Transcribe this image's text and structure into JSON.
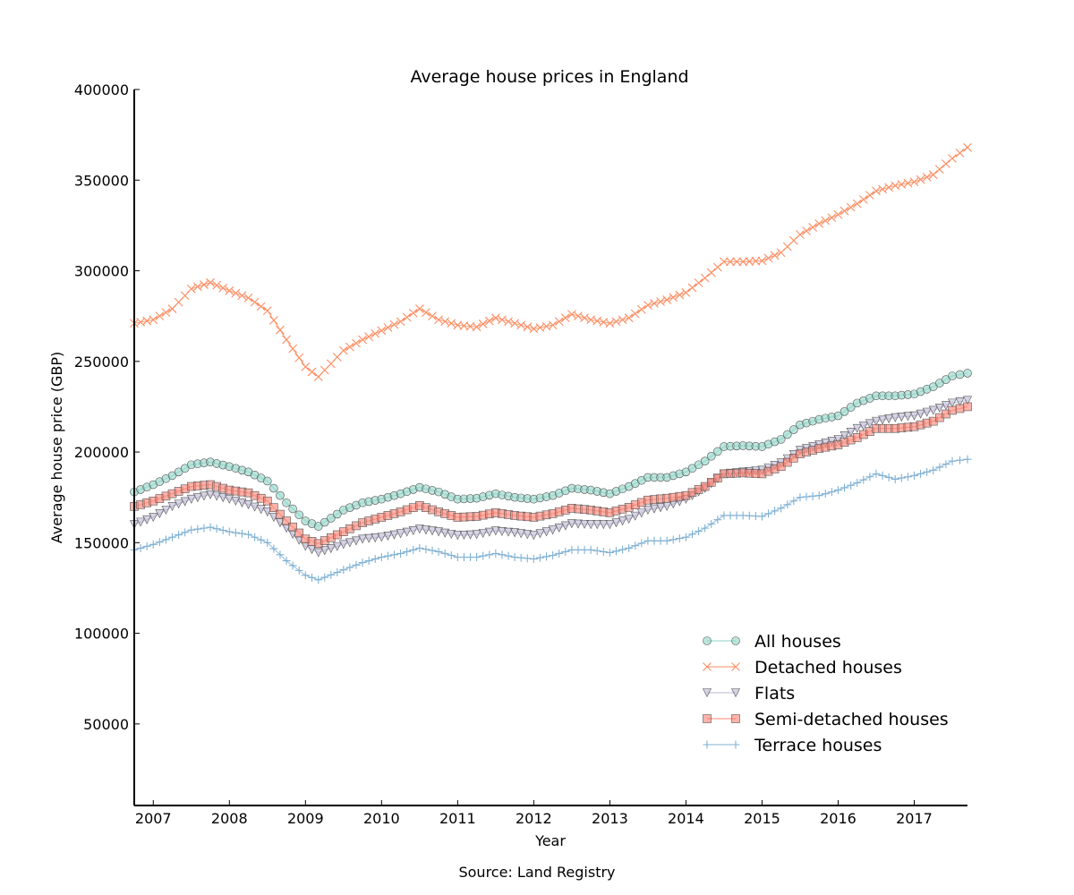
{
  "chart_data": {
    "type": "line",
    "title": "Average house prices in England",
    "xlabel": "Year",
    "ylabel": "Average house price (GBP)",
    "source": "Source: Land Registry",
    "xlim": [
      2006.75,
      2017.7
    ],
    "ylim": [
      5000,
      400000
    ],
    "x_ticks": [
      2007,
      2008,
      2009,
      2010,
      2011,
      2012,
      2013,
      2014,
      2015,
      2016,
      2017
    ],
    "x_tick_labels": [
      "2007",
      "2008",
      "2009",
      "2010",
      "2011",
      "2012",
      "2013",
      "2014",
      "2015",
      "2016",
      "2017"
    ],
    "y_ticks": [
      50000,
      100000,
      150000,
      200000,
      250000,
      300000,
      350000,
      400000
    ],
    "y_tick_labels": [
      "50000",
      "100000",
      "150000",
      "200000",
      "250000",
      "300000",
      "350000",
      "400000"
    ],
    "grid": false,
    "legend_position": "lower-right",
    "series": [
      {
        "name": "All houses",
        "marker": "circle",
        "color": "#8dd3c7",
        "points": [
          [
            2006.75,
            178000
          ],
          [
            2007.0,
            182000
          ],
          [
            2007.25,
            187000
          ],
          [
            2007.5,
            193000
          ],
          [
            2007.75,
            194500
          ],
          [
            2008.0,
            192000
          ],
          [
            2008.25,
            189000
          ],
          [
            2008.5,
            184000
          ],
          [
            2008.75,
            172000
          ],
          [
            2009.0,
            162000
          ],
          [
            2009.17,
            159000
          ],
          [
            2009.5,
            168000
          ],
          [
            2009.75,
            172000
          ],
          [
            2010.0,
            174000
          ],
          [
            2010.25,
            177000
          ],
          [
            2010.5,
            180500
          ],
          [
            2010.75,
            178000
          ],
          [
            2011.0,
            174000
          ],
          [
            2011.25,
            174500
          ],
          [
            2011.5,
            177000
          ],
          [
            2011.75,
            175000
          ],
          [
            2012.0,
            174000
          ],
          [
            2012.25,
            176000
          ],
          [
            2012.5,
            180000
          ],
          [
            2012.75,
            179000
          ],
          [
            2013.0,
            177000
          ],
          [
            2013.25,
            181000
          ],
          [
            2013.5,
            186000
          ],
          [
            2013.75,
            186000
          ],
          [
            2014.0,
            189000
          ],
          [
            2014.25,
            195000
          ],
          [
            2014.5,
            203000
          ],
          [
            2014.75,
            203500
          ],
          [
            2015.0,
            203000
          ],
          [
            2015.25,
            207000
          ],
          [
            2015.5,
            215000
          ],
          [
            2015.75,
            218000
          ],
          [
            2016.0,
            220000
          ],
          [
            2016.25,
            227000
          ],
          [
            2016.5,
            231000
          ],
          [
            2016.75,
            231000
          ],
          [
            2017.0,
            232000
          ],
          [
            2017.25,
            236000
          ],
          [
            2017.5,
            242000
          ],
          [
            2017.7,
            243500
          ]
        ]
      },
      {
        "name": "Detached houses",
        "marker": "x",
        "color": "#fc8d62",
        "points": [
          [
            2006.75,
            271000
          ],
          [
            2007.0,
            273000
          ],
          [
            2007.25,
            279000
          ],
          [
            2007.5,
            290000
          ],
          [
            2007.75,
            293500
          ],
          [
            2008.0,
            289000
          ],
          [
            2008.25,
            285000
          ],
          [
            2008.5,
            278000
          ],
          [
            2008.75,
            262000
          ],
          [
            2009.0,
            247000
          ],
          [
            2009.17,
            241500
          ],
          [
            2009.5,
            256000
          ],
          [
            2009.75,
            262000
          ],
          [
            2010.0,
            267000
          ],
          [
            2010.25,
            272000
          ],
          [
            2010.5,
            279000
          ],
          [
            2010.75,
            273000
          ],
          [
            2011.0,
            270000
          ],
          [
            2011.25,
            269000
          ],
          [
            2011.5,
            274000
          ],
          [
            2011.75,
            271000
          ],
          [
            2012.0,
            268000
          ],
          [
            2012.25,
            270000
          ],
          [
            2012.5,
            276000
          ],
          [
            2012.75,
            273000
          ],
          [
            2013.0,
            271000
          ],
          [
            2013.25,
            274000
          ],
          [
            2013.5,
            281000
          ],
          [
            2013.75,
            284000
          ],
          [
            2014.0,
            288000
          ],
          [
            2014.25,
            296000
          ],
          [
            2014.5,
            305000
          ],
          [
            2014.75,
            305000
          ],
          [
            2015.0,
            305500
          ],
          [
            2015.25,
            310000
          ],
          [
            2015.5,
            320000
          ],
          [
            2015.75,
            326000
          ],
          [
            2016.0,
            331000
          ],
          [
            2016.25,
            337000
          ],
          [
            2016.5,
            344000
          ],
          [
            2016.75,
            347000
          ],
          [
            2017.0,
            349000
          ],
          [
            2017.25,
            353000
          ],
          [
            2017.5,
            362000
          ],
          [
            2017.7,
            368000
          ]
        ]
      },
      {
        "name": "Flats",
        "marker": "triangle-down",
        "color": "#bcb8d6",
        "points": [
          [
            2006.75,
            160000
          ],
          [
            2007.0,
            164000
          ],
          [
            2007.25,
            170000
          ],
          [
            2007.5,
            174000
          ],
          [
            2007.75,
            176500
          ],
          [
            2008.0,
            174000
          ],
          [
            2008.25,
            171000
          ],
          [
            2008.5,
            167000
          ],
          [
            2008.75,
            158000
          ],
          [
            2009.0,
            148000
          ],
          [
            2009.17,
            144500
          ],
          [
            2009.5,
            149000
          ],
          [
            2009.75,
            152000
          ],
          [
            2010.0,
            153000
          ],
          [
            2010.25,
            155000
          ],
          [
            2010.5,
            157500
          ],
          [
            2010.75,
            156000
          ],
          [
            2011.0,
            154000
          ],
          [
            2011.25,
            154500
          ],
          [
            2011.5,
            156500
          ],
          [
            2011.75,
            155500
          ],
          [
            2012.0,
            154000
          ],
          [
            2012.25,
            157000
          ],
          [
            2012.5,
            160500
          ],
          [
            2012.75,
            160000
          ],
          [
            2013.0,
            160000
          ],
          [
            2013.25,
            163000
          ],
          [
            2013.5,
            168000
          ],
          [
            2013.75,
            170000
          ],
          [
            2014.0,
            174000
          ],
          [
            2014.25,
            180000
          ],
          [
            2014.5,
            188000
          ],
          [
            2014.75,
            189000
          ],
          [
            2015.0,
            190000
          ],
          [
            2015.25,
            194000
          ],
          [
            2015.5,
            201000
          ],
          [
            2015.75,
            204000
          ],
          [
            2016.0,
            207000
          ],
          [
            2016.25,
            213000
          ],
          [
            2016.5,
            217000
          ],
          [
            2016.75,
            219000
          ],
          [
            2017.0,
            220000
          ],
          [
            2017.25,
            223000
          ],
          [
            2017.5,
            227000
          ],
          [
            2017.7,
            228500
          ]
        ]
      },
      {
        "name": "Semi-detached houses",
        "marker": "square",
        "color": "#fb8072",
        "points": [
          [
            2006.75,
            170000
          ],
          [
            2007.0,
            173000
          ],
          [
            2007.25,
            177000
          ],
          [
            2007.5,
            181000
          ],
          [
            2007.75,
            182000
          ],
          [
            2008.0,
            179000
          ],
          [
            2008.25,
            177500
          ],
          [
            2008.5,
            173000
          ],
          [
            2008.75,
            162000
          ],
          [
            2009.0,
            152000
          ],
          [
            2009.17,
            149500
          ],
          [
            2009.5,
            156000
          ],
          [
            2009.75,
            161000
          ],
          [
            2010.0,
            164000
          ],
          [
            2010.25,
            167000
          ],
          [
            2010.5,
            170500
          ],
          [
            2010.75,
            167000
          ],
          [
            2011.0,
            164000
          ],
          [
            2011.25,
            164500
          ],
          [
            2011.5,
            166500
          ],
          [
            2011.75,
            165000
          ],
          [
            2012.0,
            164000
          ],
          [
            2012.25,
            166000
          ],
          [
            2012.5,
            169000
          ],
          [
            2012.75,
            168000
          ],
          [
            2013.0,
            166500
          ],
          [
            2013.25,
            169500
          ],
          [
            2013.5,
            173500
          ],
          [
            2013.75,
            174500
          ],
          [
            2014.0,
            176000
          ],
          [
            2014.25,
            181000
          ],
          [
            2014.5,
            188000
          ],
          [
            2014.75,
            188500
          ],
          [
            2015.0,
            188000
          ],
          [
            2015.25,
            192000
          ],
          [
            2015.5,
            199000
          ],
          [
            2015.75,
            202000
          ],
          [
            2016.0,
            204000
          ],
          [
            2016.25,
            208000
          ],
          [
            2016.5,
            213000
          ],
          [
            2016.75,
            213000
          ],
          [
            2017.0,
            214000
          ],
          [
            2017.25,
            217000
          ],
          [
            2017.5,
            223000
          ],
          [
            2017.7,
            225000
          ]
        ]
      },
      {
        "name": "Terrace houses",
        "marker": "plus",
        "color": "#80b1d3",
        "points": [
          [
            2006.75,
            146000
          ],
          [
            2007.0,
            149000
          ],
          [
            2007.25,
            153000
          ],
          [
            2007.5,
            157000
          ],
          [
            2007.75,
            158500
          ],
          [
            2008.0,
            156000
          ],
          [
            2008.25,
            154500
          ],
          [
            2008.5,
            150000
          ],
          [
            2008.75,
            140000
          ],
          [
            2009.0,
            132000
          ],
          [
            2009.17,
            129500
          ],
          [
            2009.5,
            135000
          ],
          [
            2009.75,
            139000
          ],
          [
            2010.0,
            142000
          ],
          [
            2010.25,
            144000
          ],
          [
            2010.5,
            147000
          ],
          [
            2010.75,
            145000
          ],
          [
            2011.0,
            142000
          ],
          [
            2011.25,
            142000
          ],
          [
            2011.5,
            144000
          ],
          [
            2011.75,
            142000
          ],
          [
            2012.0,
            141000
          ],
          [
            2012.25,
            143000
          ],
          [
            2012.5,
            146000
          ],
          [
            2012.75,
            146000
          ],
          [
            2013.0,
            144500
          ],
          [
            2013.25,
            147000
          ],
          [
            2013.5,
            151000
          ],
          [
            2013.75,
            151000
          ],
          [
            2014.0,
            153000
          ],
          [
            2014.25,
            158000
          ],
          [
            2014.5,
            165000
          ],
          [
            2014.75,
            165000
          ],
          [
            2015.0,
            164500
          ],
          [
            2015.25,
            169000
          ],
          [
            2015.5,
            175000
          ],
          [
            2015.75,
            176000
          ],
          [
            2016.0,
            179000
          ],
          [
            2016.25,
            183000
          ],
          [
            2016.5,
            188000
          ],
          [
            2016.75,
            185000
          ],
          [
            2017.0,
            187000
          ],
          [
            2017.25,
            190000
          ],
          [
            2017.5,
            195000
          ],
          [
            2017.7,
            196000
          ]
        ]
      }
    ]
  }
}
